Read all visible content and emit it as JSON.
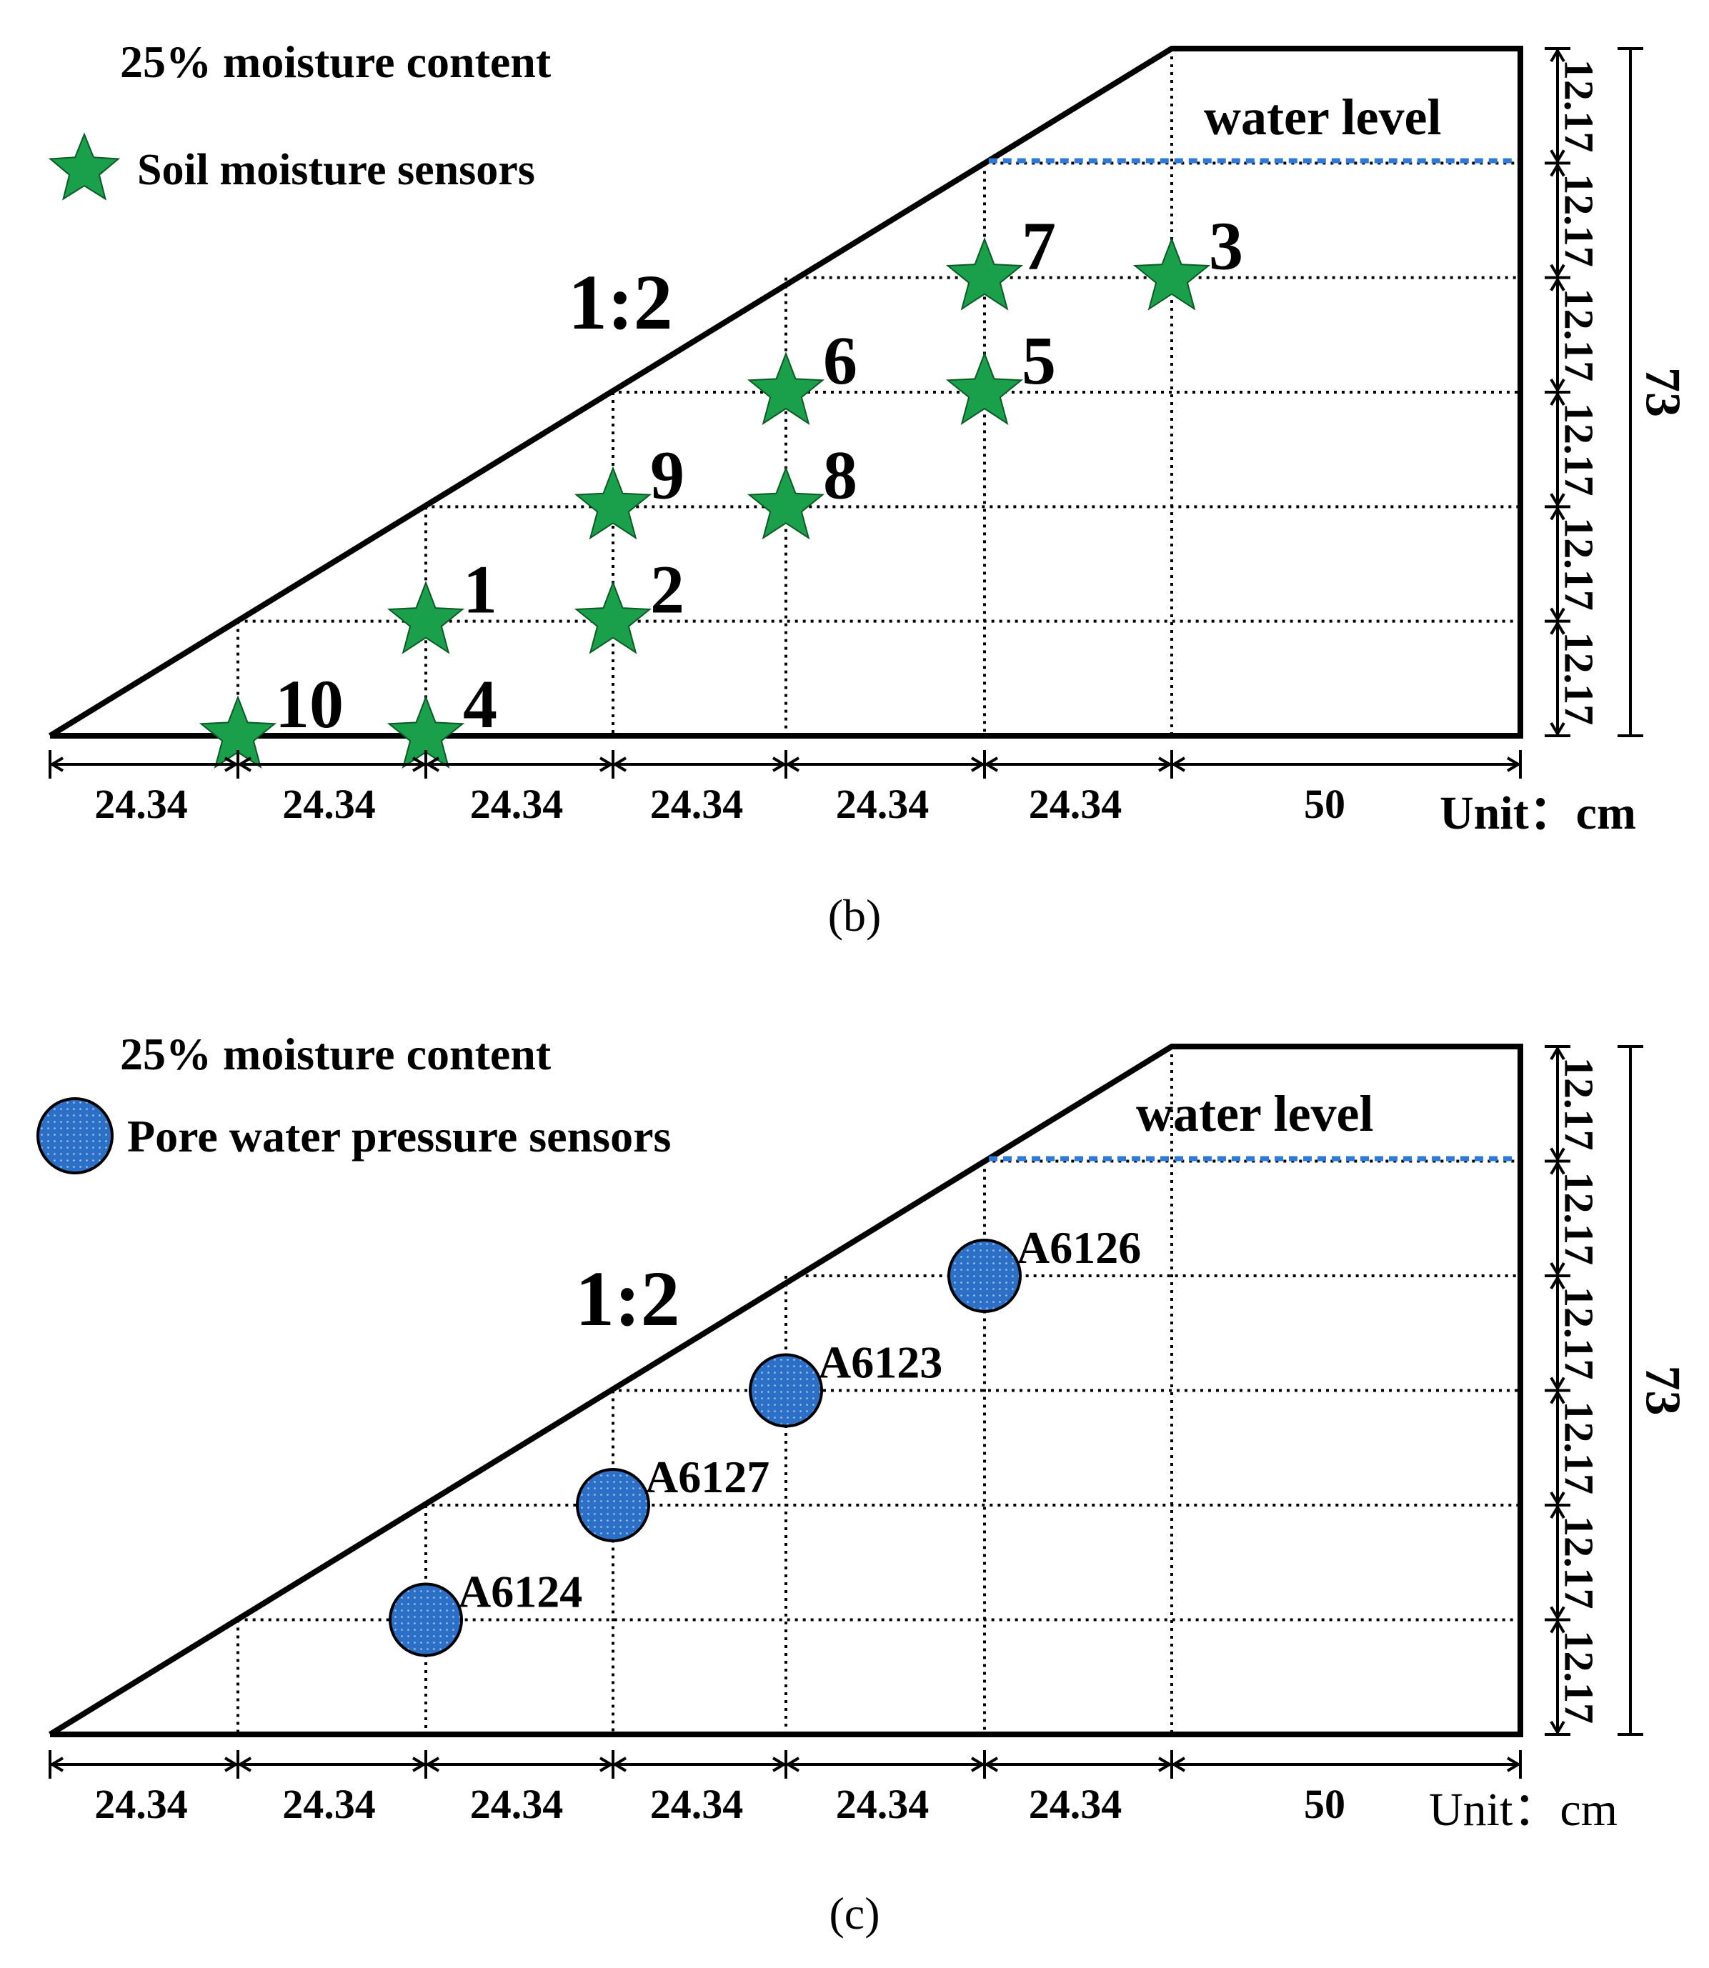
{
  "colors": {
    "line": "#000000",
    "star": "#1aa04a",
    "circle": "#2b6fc6",
    "water": "#2f7ad6"
  },
  "icons": {
    "star": "star-icon",
    "circle": "dotted-circle-icon"
  },
  "panels": [
    {
      "id": "b",
      "moisture_label": "25% moisture content",
      "sensor_legend": "Soil moisture sensors",
      "slope_label": "1:2",
      "water_level_label": "water level",
      "height_total": "73",
      "height_segments": [
        "12.17",
        "12.17",
        "12.17",
        "12.17",
        "12.17",
        "12.17"
      ],
      "width_segments": [
        "24.34",
        "24.34",
        "24.34",
        "24.34",
        "24.34",
        "24.34",
        "50"
      ],
      "unit_label": "Unit：cm",
      "caption": "(b)",
      "sensors": [
        {
          "label": "10",
          "col": 1,
          "row": 0
        },
        {
          "label": "4",
          "col": 2,
          "row": 0
        },
        {
          "label": "1",
          "col": 2,
          "row": 1
        },
        {
          "label": "2",
          "col": 3,
          "row": 1
        },
        {
          "label": "9",
          "col": 3,
          "row": 2
        },
        {
          "label": "8",
          "col": 4,
          "row": 2
        },
        {
          "label": "6",
          "col": 4,
          "row": 3
        },
        {
          "label": "5",
          "col": 5,
          "row": 3
        },
        {
          "label": "7",
          "col": 5,
          "row": 4
        },
        {
          "label": "3",
          "col": 6,
          "row": 4
        }
      ]
    },
    {
      "id": "c",
      "moisture_label": "25% moisture content",
      "sensor_legend": "Pore water pressure sensors",
      "slope_label": "1:2",
      "water_level_label": "water level",
      "height_total": "73",
      "height_segments": [
        "12.17",
        "12.17",
        "12.17",
        "12.17",
        "12.17",
        "12.17"
      ],
      "width_segments": [
        "24.34",
        "24.34",
        "24.34",
        "24.34",
        "24.34",
        "24.34",
        "50"
      ],
      "unit_label": "Unit：cm",
      "caption": "(c)",
      "sensors": [
        {
          "label": "A6124",
          "col": 2,
          "row": 1
        },
        {
          "label": "A6127",
          "col": 3,
          "row": 2
        },
        {
          "label": "A6123",
          "col": 4,
          "row": 3
        },
        {
          "label": "A6126",
          "col": 5,
          "row": 4
        }
      ]
    }
  ]
}
